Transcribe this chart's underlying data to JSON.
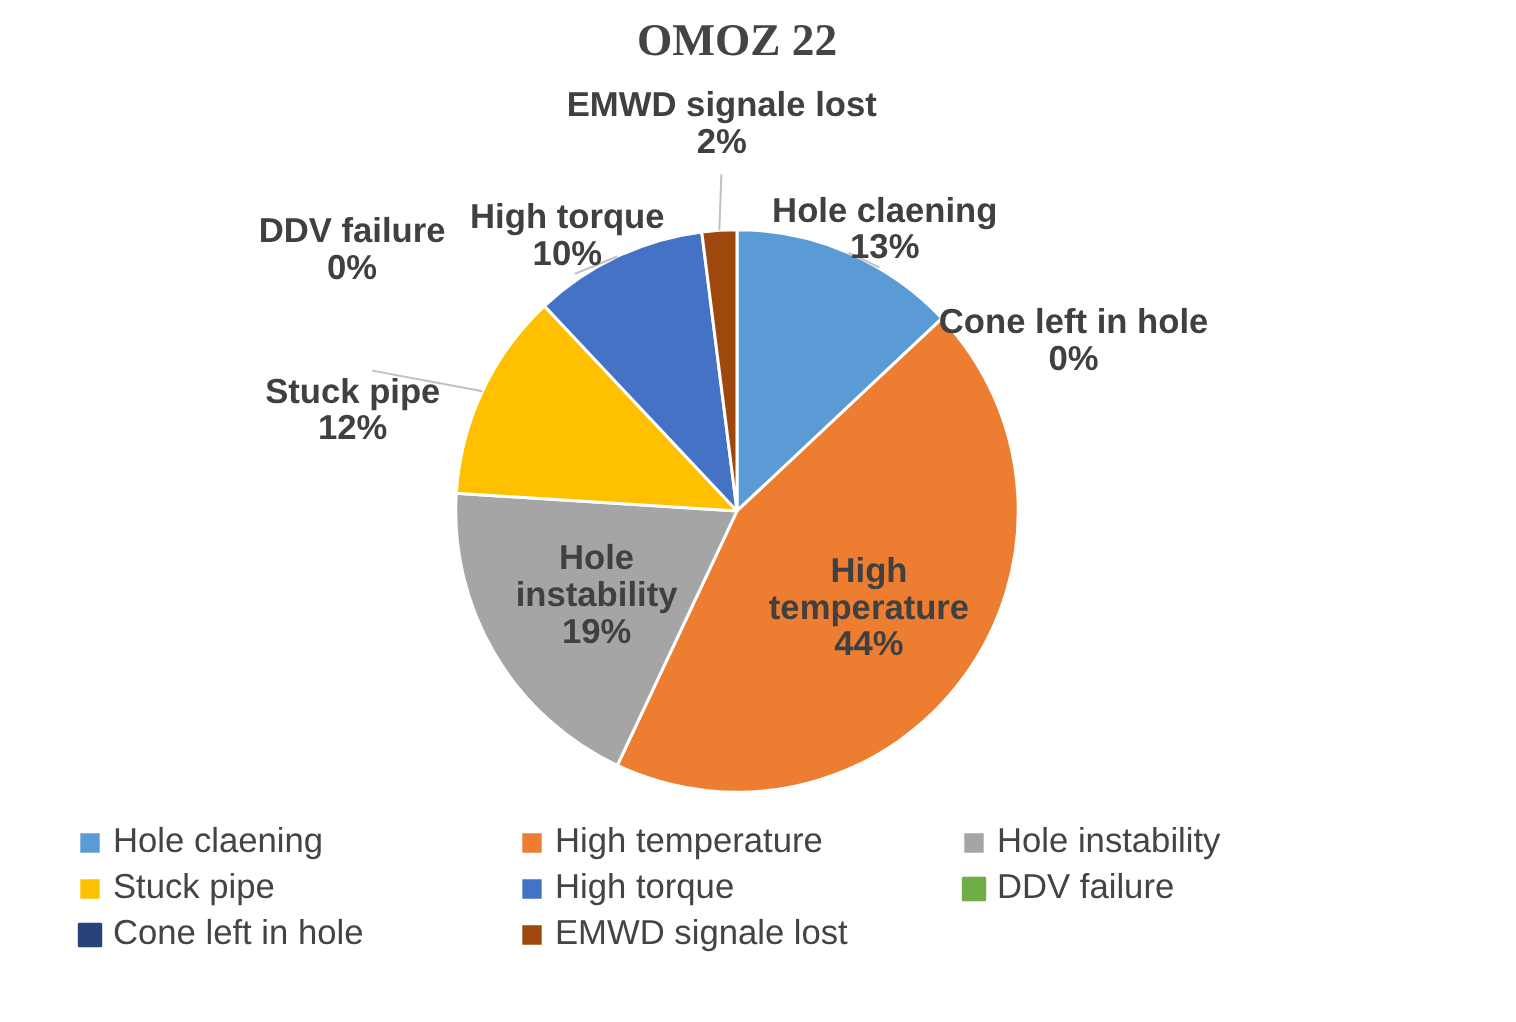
{
  "chart_data": {
    "type": "pie",
    "title": "OMOZ 22",
    "categories": [
      "Hole claening",
      "High temperature",
      "Hole instability",
      "Stuck pipe",
      "High torque",
      "DDV failure",
      "Cone left in hole",
      "EMWD signale lost"
    ],
    "values": [
      13,
      44,
      19,
      12,
      10,
      0,
      0,
      2
    ],
    "colors": [
      "#5b9bd5",
      "#ed7d31",
      "#a5a5a5",
      "#ffc000",
      "#4472c4",
      "#70ad47",
      "#264478",
      "#9e480e"
    ],
    "value_labels": [
      "13%",
      "44%",
      "19%",
      "12%",
      "10%",
      "0%",
      "0%",
      "2%"
    ],
    "data_labels": true,
    "legend": "bottom"
  }
}
